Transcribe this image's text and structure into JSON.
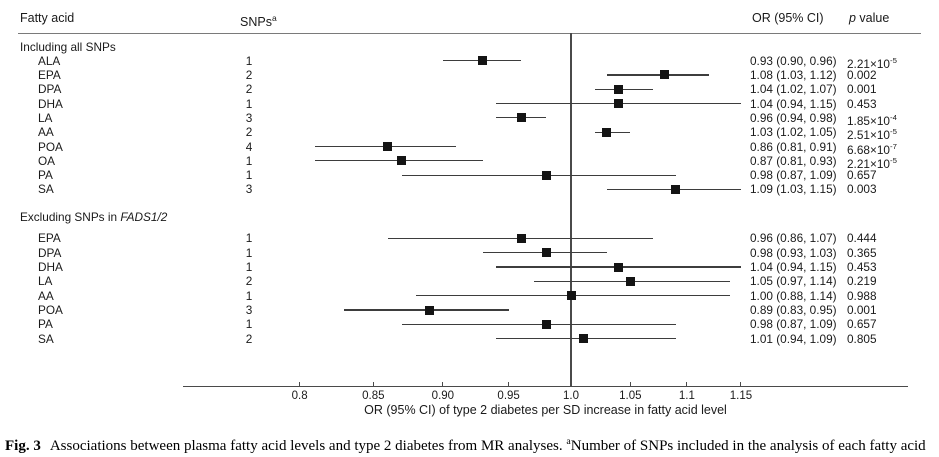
{
  "header": {
    "fatty_acid": "Fatty acid",
    "snps_label": "SNPs",
    "snps_sup": "a",
    "or_ci": "OR (95% CI)",
    "p_label_italic": "p",
    "p_label_rest": " value"
  },
  "chart_data": {
    "type": "forest",
    "x_axis": {
      "scale": "log",
      "ticks": [
        0.8,
        0.85,
        0.9,
        0.95,
        1.0,
        1.05,
        1.1,
        1.15
      ],
      "tick_labels": [
        "0.8",
        "0.85",
        "0.90",
        "0.95",
        "1.0",
        "1.05",
        "1.1",
        "1.15"
      ],
      "ref_line": 1.0,
      "label": "OR (95% CI) of type 2 diabetes per SD increase in fatty acid level"
    },
    "sections": [
      {
        "title": "Including all SNPs",
        "rows": [
          {
            "label": "ALA",
            "snps": "1",
            "or": 0.93,
            "lo": 0.9,
            "hi": 0.96,
            "or_text": "0.93 (0.90, 0.96)",
            "p": "2.21×10^-5"
          },
          {
            "label": "EPA",
            "snps": "2",
            "or": 1.08,
            "lo": 1.03,
            "hi": 1.12,
            "or_text": "1.08 (1.03, 1.12)",
            "p": "0.002"
          },
          {
            "label": "DPA",
            "snps": "2",
            "or": 1.04,
            "lo": 1.02,
            "hi": 1.07,
            "or_text": "1.04 (1.02, 1.07)",
            "p": "0.001"
          },
          {
            "label": "DHA",
            "snps": "1",
            "or": 1.04,
            "lo": 0.94,
            "hi": 1.15,
            "or_text": "1.04 (0.94, 1.15)",
            "p": "0.453"
          },
          {
            "label": "LA",
            "snps": "3",
            "or": 0.96,
            "lo": 0.94,
            "hi": 0.98,
            "or_text": "0.96 (0.94, 0.98)",
            "p": "1.85×10^-4"
          },
          {
            "label": "AA",
            "snps": "2",
            "or": 1.03,
            "lo": 1.02,
            "hi": 1.05,
            "or_text": "1.03 (1.02, 1.05)",
            "p": "2.51×10^-5"
          },
          {
            "label": "POA",
            "snps": "4",
            "or": 0.86,
            "lo": 0.81,
            "hi": 0.91,
            "or_text": "0.86 (0.81, 0.91)",
            "p": "6.68×10^-7"
          },
          {
            "label": "OA",
            "snps": "1",
            "or": 0.87,
            "lo": 0.81,
            "hi": 0.93,
            "or_text": "0.87 (0.81, 0.93)",
            "p": "2.21×10^-5"
          },
          {
            "label": "PA",
            "snps": "1",
            "or": 0.98,
            "lo": 0.87,
            "hi": 1.09,
            "or_text": "0.98 (0.87, 1.09)",
            "p": "0.657"
          },
          {
            "label": "SA",
            "snps": "3",
            "or": 1.09,
            "lo": 1.03,
            "hi": 1.15,
            "or_text": "1.09 (1.03, 1.15)",
            "p": "0.003"
          }
        ]
      },
      {
        "title": "Excluding SNPs in ",
        "title_italic": "FADS1/2",
        "rows": [
          {
            "label": "EPA",
            "snps": "1",
            "or": 0.96,
            "lo": 0.86,
            "hi": 1.07,
            "or_text": "0.96 (0.86, 1.07)",
            "p": "0.444"
          },
          {
            "label": "DPA",
            "snps": "1",
            "or": 0.98,
            "lo": 0.93,
            "hi": 1.03,
            "or_text": "0.98 (0.93, 1.03)",
            "p": "0.365"
          },
          {
            "label": "DHA",
            "snps": "1",
            "or": 1.04,
            "lo": 0.94,
            "hi": 1.15,
            "or_text": "1.04 (0.94, 1.15)",
            "p": "0.453"
          },
          {
            "label": "LA",
            "snps": "2",
            "or": 1.05,
            "lo": 0.97,
            "hi": 1.14,
            "or_text": "1.05 (0.97, 1.14)",
            "p": "0.219"
          },
          {
            "label": "AA",
            "snps": "1",
            "or": 1.0,
            "lo": 0.88,
            "hi": 1.14,
            "or_text": "1.00 (0.88, 1.14)",
            "p": "0.988"
          },
          {
            "label": "POA",
            "snps": "3",
            "or": 0.89,
            "lo": 0.83,
            "hi": 0.95,
            "or_text": "0.89 (0.83, 0.95)",
            "p": "0.001"
          },
          {
            "label": "PA",
            "snps": "1",
            "or": 0.98,
            "lo": 0.87,
            "hi": 1.09,
            "or_text": "0.98 (0.87, 1.09)",
            "p": "0.657"
          },
          {
            "label": "SA",
            "snps": "2",
            "or": 1.01,
            "lo": 0.94,
            "hi": 1.09,
            "or_text": "1.01 (0.94, 1.09)",
            "p": "0.805"
          }
        ]
      }
    ]
  },
  "caption": {
    "fig": "Fig. 3",
    "text": "Associations between plasma fatty acid levels and type 2 diabetes from MR analyses. ",
    "sup": "a",
    "text2": "Number of SNPs included in the analysis of each fatty acid"
  },
  "colors": {
    "text": "#1a1a1a",
    "marker": "#141414",
    "lines": "#4a4a4a",
    "header_rule": "#7a7a7a",
    "background": "#ffffff"
  }
}
